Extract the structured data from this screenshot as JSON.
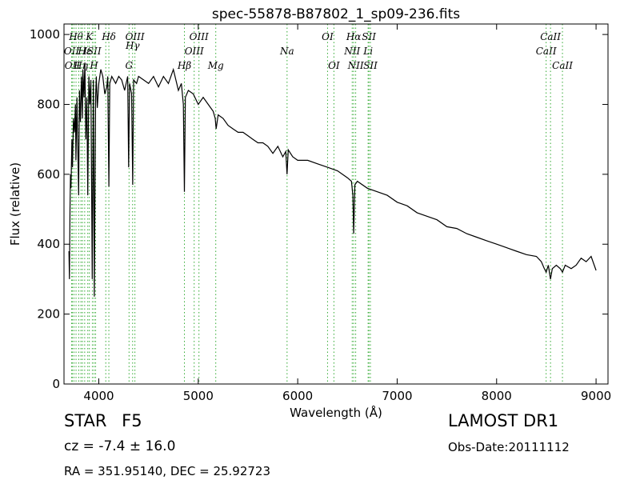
{
  "chart_data": {
    "type": "line",
    "title": "spec-55878-B87802_1_sp09-236.fits",
    "xlabel": "Wavelength (Å)",
    "ylabel": "Flux (relative)",
    "xlim": [
      3650,
      9120
    ],
    "ylim": [
      0,
      1030
    ],
    "xticks": [
      4000,
      5000,
      6000,
      7000,
      8000,
      9000
    ],
    "yticks": [
      0,
      200,
      400,
      600,
      800,
      1000
    ],
    "grid": false,
    "line_color": "#000000",
    "marker_color": "#33aa33",
    "series": [
      {
        "x": [
          3700,
          3705,
          3710,
          3715,
          3720,
          3730,
          3735,
          3745,
          3755,
          3765,
          3770,
          3780,
          3790,
          3797,
          3805,
          3815,
          3825,
          3835,
          3840,
          3850,
          3860,
          3870,
          3880,
          3889,
          3900,
          3910,
          3920,
          3934,
          3945,
          3955,
          3968,
          3975,
          3985,
          4000,
          4020,
          4040,
          4060,
          4080,
          4090,
          4101,
          4110,
          4130,
          4150,
          4170,
          4200,
          4230,
          4260,
          4290,
          4300,
          4310,
          4330,
          4341,
          4350,
          4380,
          4400,
          4450,
          4500,
          4550,
          4600,
          4650,
          4700,
          4750,
          4800,
          4830,
          4850,
          4861,
          4870,
          4900,
          4950,
          5000,
          5050,
          5100,
          5150,
          5170,
          5180,
          5200,
          5250,
          5300,
          5350,
          5400,
          5450,
          5500,
          5550,
          5600,
          5650,
          5700,
          5750,
          5800,
          5850,
          5880,
          5893,
          5905,
          5950,
          6000,
          6100,
          6200,
          6300,
          6400,
          6500,
          6540,
          6555,
          6563,
          6575,
          6600,
          6700,
          6800,
          6900,
          7000,
          7100,
          7200,
          7300,
          7400,
          7500,
          7600,
          7700,
          7800,
          7900,
          8000,
          8100,
          8200,
          8300,
          8400,
          8450,
          8480,
          8498,
          8520,
          8542,
          8560,
          8600,
          8640,
          8662,
          8690,
          8750,
          8800,
          8850,
          8900,
          8950,
          9000
        ],
        "y": [
          380,
          300,
          500,
          600,
          560,
          700,
          620,
          760,
          720,
          800,
          640,
          820,
          660,
          540,
          840,
          750,
          880,
          760,
          900,
          820,
          920,
          700,
          820,
          540,
          880,
          800,
          870,
          300,
          870,
          250,
          820,
          880,
          790,
          860,
          900,
          880,
          830,
          850,
          880,
          565,
          860,
          880,
          870,
          860,
          880,
          870,
          840,
          880,
          620,
          860,
          830,
          570,
          870,
          860,
          880,
          870,
          860,
          880,
          850,
          880,
          860,
          900,
          840,
          860,
          800,
          550,
          820,
          840,
          830,
          800,
          820,
          800,
          780,
          760,
          730,
          770,
          760,
          740,
          730,
          720,
          720,
          710,
          700,
          690,
          690,
          680,
          660,
          680,
          650,
          665,
          600,
          670,
          650,
          640,
          640,
          630,
          620,
          610,
          590,
          580,
          540,
          430,
          570,
          580,
          560,
          550,
          540,
          520,
          510,
          490,
          480,
          470,
          450,
          445,
          430,
          420,
          410,
          400,
          390,
          380,
          370,
          365,
          350,
          330,
          320,
          340,
          300,
          330,
          340,
          330,
          320,
          340,
          330,
          340,
          360,
          350,
          365,
          325
        ]
      }
    ],
    "line_markers": [
      {
        "x": 3727,
        "label": "OII",
        "row": 1
      },
      {
        "x": 3734,
        "label": "OII",
        "row": 2
      },
      {
        "x": 3750,
        "label": "",
        "row": 0
      },
      {
        "x": 3771,
        "label": "Hθ",
        "row": 0
      },
      {
        "x": 3798,
        "label": "",
        "row": 0
      },
      {
        "x": 3820,
        "label": "Hη",
        "row": 2
      },
      {
        "x": 3835,
        "label": "",
        "row": 0
      },
      {
        "x": 3858,
        "label": "Hε",
        "row": 1
      },
      {
        "x": 3889,
        "label": "",
        "row": 0
      },
      {
        "x": 3905,
        "label": "K",
        "row": 0
      },
      {
        "x": 3935,
        "label": "ISII",
        "row": 1
      },
      {
        "x": 3952,
        "label": "H",
        "row": 2
      },
      {
        "x": 3968,
        "label": "",
        "row": 0
      },
      {
        "x": 4070,
        "label": "",
        "row": 0
      },
      {
        "x": 4101,
        "label": "Hδ",
        "row": 0
      },
      {
        "x": 4304,
        "label": "G",
        "row": 2
      },
      {
        "x": 4340,
        "label": "Hγ",
        "row": 0.6
      },
      {
        "x": 4363,
        "label": "OIII",
        "row": 0
      },
      {
        "x": 4861,
        "label": "Hβ",
        "row": 2
      },
      {
        "x": 4959,
        "label": "OIII",
        "row": 1
      },
      {
        "x": 5007,
        "label": "OIII",
        "row": 0
      },
      {
        "x": 5176,
        "label": "Mg",
        "row": 2
      },
      {
        "x": 5893,
        "label": "Na",
        "row": 1
      },
      {
        "x": 6300,
        "label": "OI",
        "row": 0
      },
      {
        "x": 6364,
        "label": "OI",
        "row": 2
      },
      {
        "x": 6548,
        "label": "NII",
        "row": 1
      },
      {
        "x": 6563,
        "label": "Hα",
        "row": 0
      },
      {
        "x": 6583,
        "label": "NII",
        "row": 2
      },
      {
        "x": 6708,
        "label": "Li",
        "row": 1
      },
      {
        "x": 6716,
        "label": "SII",
        "row": 0
      },
      {
        "x": 6731,
        "label": "SII",
        "row": 2
      },
      {
        "x": 8498,
        "label": "CaII",
        "row": 1
      },
      {
        "x": 8542,
        "label": "CaII",
        "row": 0
      },
      {
        "x": 8662,
        "label": "CaII",
        "row": 2
      }
    ]
  },
  "info": {
    "object_class": "STAR",
    "subclass": "F5",
    "survey": "LAMOST DR1",
    "cz": "cz = -7.4",
    "cz_err": "± 16.0",
    "obs_date": "Obs-Date:20111112",
    "coords": "RA = 351.95140, DEC = 25.92723"
  }
}
